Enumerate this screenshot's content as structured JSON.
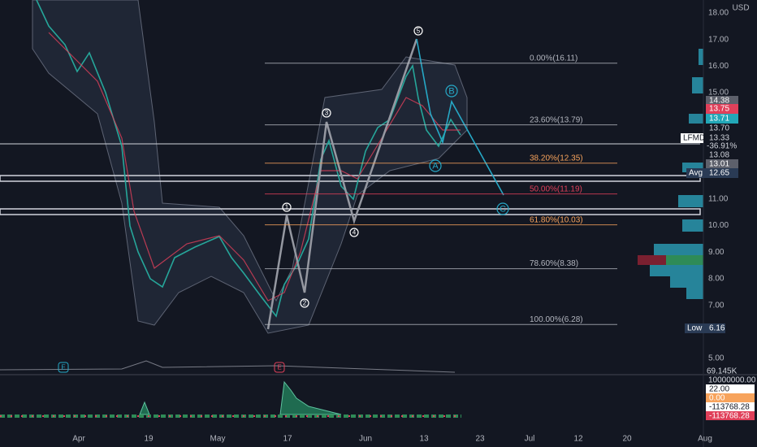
{
  "symbol": "LFMD",
  "currency": "USD",
  "price_axis": {
    "ticks": [
      {
        "value": 18,
        "label": "18.00"
      },
      {
        "value": 17,
        "label": "17.00"
      },
      {
        "value": 16,
        "label": "16.00"
      },
      {
        "value": 15,
        "label": "15.00"
      },
      {
        "value": 11,
        "label": "11.00"
      },
      {
        "value": 10,
        "label": "10.00"
      },
      {
        "value": 9,
        "label": "9.00"
      },
      {
        "value": 8,
        "label": "8.00"
      },
      {
        "value": 7,
        "label": "7.00"
      },
      {
        "value": 5,
        "label": "5.00"
      }
    ]
  },
  "date_axis": [
    "Apr",
    "19",
    "May",
    "17",
    "Jun",
    "13",
    "23",
    "Jul",
    "12",
    "20",
    "Aug"
  ],
  "fib_levels": [
    {
      "label": "0.00%(16.11)",
      "price": 16.11,
      "color": "#b2b5be"
    },
    {
      "label": "23.60%(13.79)",
      "price": 13.79,
      "color": "#b2b5be"
    },
    {
      "label": "38.20%(12.35)",
      "price": 12.35,
      "color": "#f7a35c"
    },
    {
      "label": "50.00%(11.19)",
      "price": 11.19,
      "color": "#e0405a"
    },
    {
      "label": "61.80%(10.03)",
      "price": 10.03,
      "color": "#f7a35c"
    },
    {
      "label": "78.60%(8.38)",
      "price": 8.38,
      "color": "#b2b5be"
    },
    {
      "label": "100.00%(6.28)",
      "price": 6.28,
      "color": "#b2b5be"
    }
  ],
  "waves": [
    "5",
    "3",
    "1",
    "2",
    "4",
    "B",
    "A",
    "C"
  ],
  "events": [
    "E",
    "E"
  ],
  "badges": {
    "high": "14.38",
    "red": "13.75",
    "teal": "13.71",
    "dark": "13.70",
    "last": "13.33",
    "change": "-36.91%",
    "b1": "13.08",
    "b2": "13.01",
    "avg_label": "Avg",
    "avg": "12.65",
    "low_label": "Low",
    "low": "6.16",
    "volume": "69.145K"
  },
  "indicator_axis": {
    "top": "10000000.00",
    "a": "22.00",
    "b": "0.00",
    "c": "-113768.28",
    "d": "-113768.28"
  }
}
